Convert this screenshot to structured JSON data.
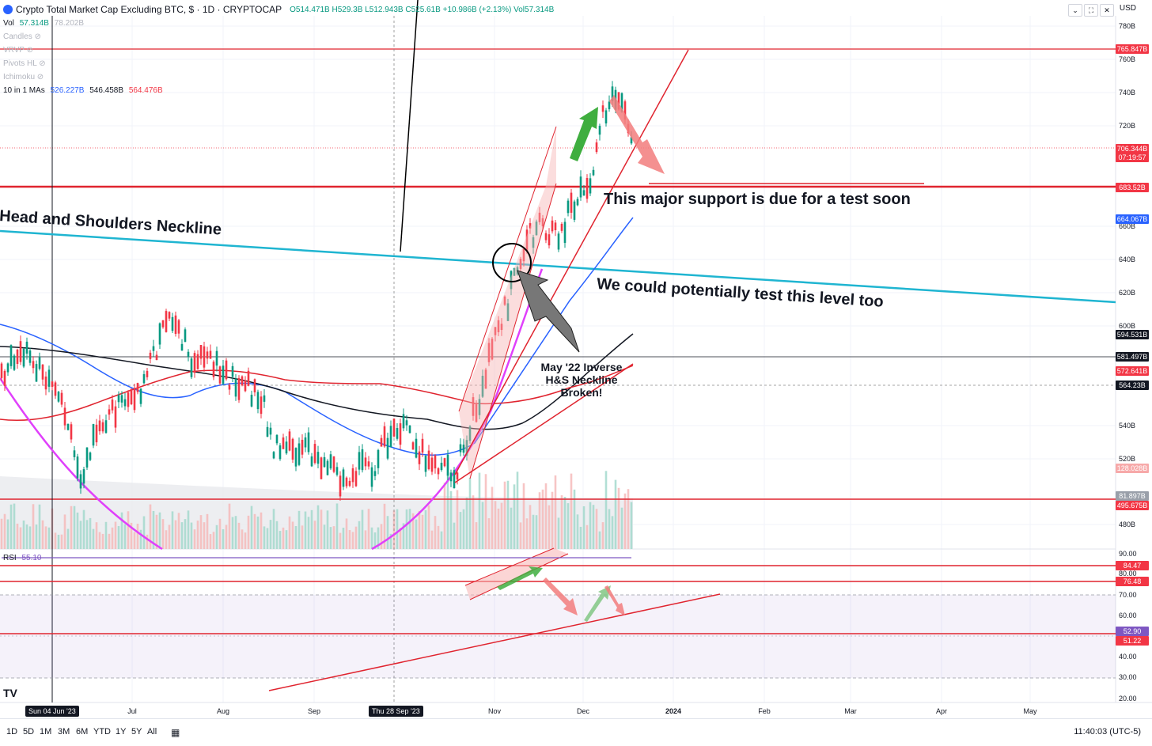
{
  "header": {
    "title": "Crypto Total Market Cap Excluding BTC, $ · 1D · CRYPTOCAP",
    "ohlc": "O514.471B H529.3B L512.943B C525.61B +10.986B (+2.13%) Vol57.314B",
    "currency": "USD"
  },
  "legend": {
    "vol_label": "Vol",
    "vol_value": "57.314B",
    "vol_ma": "78.202B",
    "indicators": [
      "Candles",
      "VRVP",
      "Pivots HL",
      "Ichimoku"
    ],
    "mas_label": "10 in 1 MAs",
    "mas_v1": "526.227B",
    "mas_v2": "546.458B",
    "mas_v3": "564.476B"
  },
  "price_axis": [
    "780B",
    "760B",
    "740B",
    "720B",
    "660B",
    "640B",
    "620B",
    "600B",
    "540B",
    "520B",
    "480B"
  ],
  "price_badges": [
    {
      "text": "765.847B",
      "color": "#f23645"
    },
    {
      "text": "706.344B",
      "color": "#f23645"
    },
    {
      "text": "07:19:57",
      "color": "#f23645"
    },
    {
      "text": "683.52B",
      "color": "#f23645"
    },
    {
      "text": "664.067B",
      "color": "#2962ff"
    },
    {
      "text": "594.531B",
      "color": "#131722"
    },
    {
      "text": "581.497B",
      "color": "#131722"
    },
    {
      "text": "572.641B",
      "color": "#f23645"
    },
    {
      "text": "564.23B",
      "color": "#131722"
    },
    {
      "text": "128.028B",
      "color": "#f7a9a9"
    },
    {
      "text": "81.897B",
      "color": "#9aa0aa"
    },
    {
      "text": "495.675B",
      "color": "#f23645"
    }
  ],
  "rsi": {
    "label": "RSI",
    "value": "55.10",
    "axis": [
      "90.00",
      "80.00",
      "70.00",
      "60.00",
      "40.00",
      "30.00",
      "20.00"
    ],
    "badges": [
      {
        "text": "84.47",
        "color": "#f23645"
      },
      {
        "text": "76.48",
        "color": "#f23645"
      },
      {
        "text": "52.90",
        "color": "#7e57c2"
      },
      {
        "text": "51.22",
        "color": "#f23645"
      }
    ]
  },
  "time_axis": {
    "labels": [
      "Jul",
      "Aug",
      "Sep",
      "Nov",
      "Dec",
      "2024",
      "Feb",
      "Mar",
      "Apr",
      "May"
    ],
    "highlight_left": "Sun 04 Jun '23",
    "highlight_mid": "Thu 28 Sep '23"
  },
  "annotations": {
    "support": "This major support is due for a test soon",
    "neckline": "Head and Shoulders Neckline",
    "test_level": "We could potentially test this level too",
    "inverse_hs": [
      "May '22 Inverse",
      "H&S Neckline",
      "Broken!"
    ]
  },
  "bottom_bar": {
    "ranges": [
      "1D",
      "5D",
      "1M",
      "3M",
      "6M",
      "YTD",
      "1Y",
      "5Y",
      "All"
    ],
    "clock": "11:40:03 (UTC-5)"
  },
  "toolbar": {
    "logo_text": "TV"
  }
}
